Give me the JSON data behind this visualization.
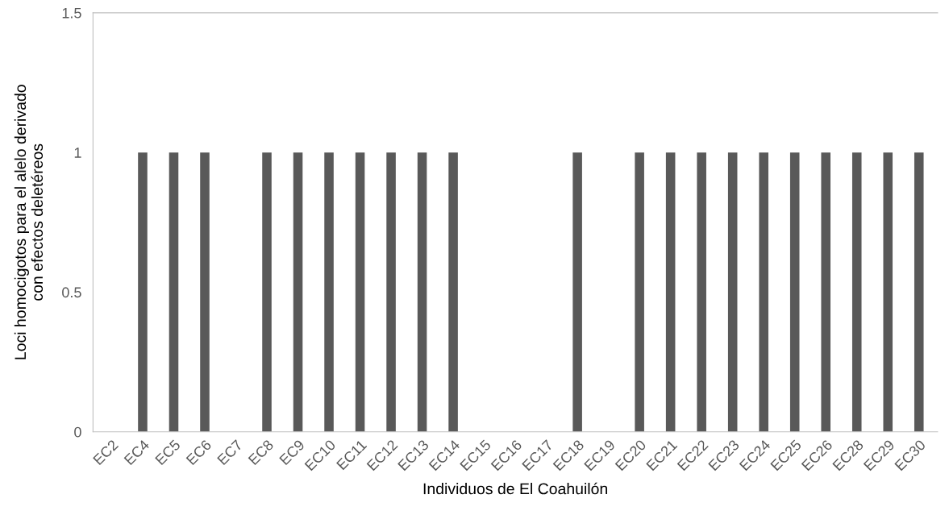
{
  "chart_data": {
    "type": "bar",
    "xlabel": "Individuos de El Coahuilón",
    "ylabel": "Loci homocigotos para el alelo derivado\ncon efectos deletéreos",
    "categories": [
      "EC2",
      "EC4",
      "EC5",
      "EC6",
      "EC7",
      "EC8",
      "EC9",
      "EC10",
      "EC11",
      "EC12",
      "EC13",
      "EC14",
      "EC15",
      "EC16",
      "EC17",
      "EC18",
      "EC19",
      "EC20",
      "EC21",
      "EC22",
      "EC23",
      "EC24",
      "EC25",
      "EC26",
      "EC28",
      "EC29",
      "EC30"
    ],
    "values": [
      0,
      1,
      1,
      1,
      0,
      1,
      1,
      1,
      1,
      1,
      1,
      1,
      0,
      0,
      0,
      1,
      0,
      1,
      1,
      1,
      1,
      1,
      1,
      1,
      1,
      1,
      1
    ],
    "color": "#595959",
    "ylim": [
      0,
      1.5
    ],
    "yticks": [
      0,
      0.5,
      1,
      1.5
    ],
    "grid": false,
    "legend": false
  }
}
